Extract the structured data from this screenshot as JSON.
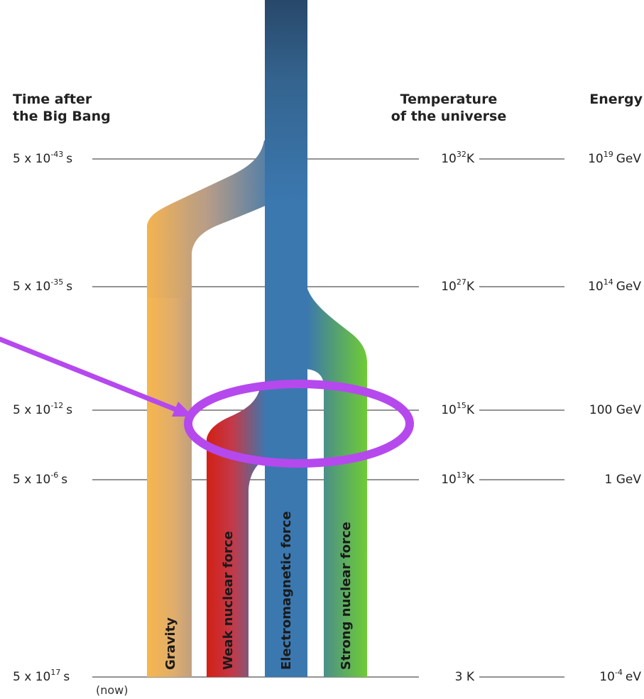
{
  "headers": {
    "time_line1": "Time after",
    "time_line2": "the Big Bang",
    "temp_line1": "Temperature",
    "temp_line2": "of the universe",
    "energy": "Energy"
  },
  "rows": [
    {
      "time_base": "5 x 10",
      "time_exp": "-43",
      "time_unit": "s",
      "temp_base": "10",
      "temp_exp": "32",
      "temp_unit": "K",
      "energy_base": "10",
      "energy_exp": "19",
      "energy_unit": "GeV"
    },
    {
      "time_base": "5 x 10",
      "time_exp": "-35",
      "time_unit": "s",
      "temp_base": "10",
      "temp_exp": "27",
      "temp_unit": "K",
      "energy_base": "10",
      "energy_exp": "14",
      "energy_unit": "GeV"
    },
    {
      "time_base": "5 x 10",
      "time_exp": "-12",
      "time_unit": "s",
      "temp_base": "10",
      "temp_exp": "15",
      "temp_unit": "K",
      "energy_base": "",
      "energy_exp": "",
      "energy_unit": "100 GeV"
    },
    {
      "time_base": "5 x 10",
      "time_exp": "-6",
      "time_unit": "s",
      "temp_base": "10",
      "temp_exp": "13",
      "temp_unit": "K",
      "energy_base": "",
      "energy_exp": "",
      "energy_unit": "1 GeV"
    },
    {
      "time_base": "5 x 10",
      "time_exp": "17",
      "time_unit": "s",
      "temp_base": "",
      "temp_exp": "",
      "temp_unit": "3 K",
      "energy_base": "10",
      "energy_exp": "-4",
      "energy_unit": "eV"
    }
  ],
  "now_label": "(now)",
  "forces": {
    "gravity": "Gravity",
    "weak": "Weak nuclear force",
    "electromagnetic": "Electromagnetic  force",
    "strong": "Strong nuclear force"
  },
  "colors": {
    "gravity": "#f5b34f",
    "weak": "#d42a1e",
    "electromagnetic": "#3b78b0",
    "electromagnetic_top": "#2a4f73",
    "strong": "#6cc83a",
    "annotation": "#b549ee",
    "line": "#555555"
  }
}
